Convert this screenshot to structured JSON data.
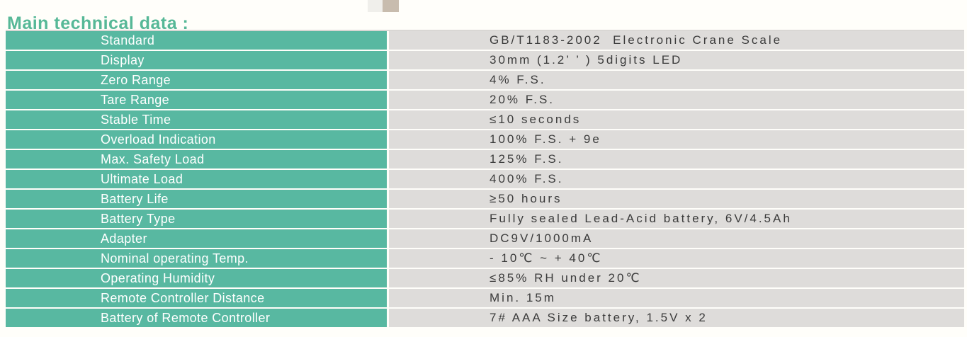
{
  "page": {
    "title": "Main technical data :"
  },
  "colors": {
    "title_color": "#56b897",
    "label_cell_bg": "#58b8a1",
    "value_cell_bg": "#dedcda",
    "label_text": "#ffffff",
    "value_text": "#3b3b3b",
    "decor_square_light": "#f0efeb",
    "decor_square_tan": "#c8bcae"
  },
  "table": {
    "rows": [
      {
        "label": "Standard",
        "value": "GB/T1183-2002  Electronic Crane Scale"
      },
      {
        "label": "Display",
        "value": "30mm (1.2’ ’ ) 5digits LED"
      },
      {
        "label": "Zero Range",
        "value": "4% F.S."
      },
      {
        "label": "Tare Range",
        "value": "20% F.S."
      },
      {
        "label": "Stable Time",
        "value": "≤10 seconds"
      },
      {
        "label": "Overload Indication",
        "value": "100% F.S. + 9e"
      },
      {
        "label": "Max. Safety Load",
        "value": "125% F.S."
      },
      {
        "label": "Ultimate Load",
        "value": "400% F.S."
      },
      {
        "label": "Battery Life",
        "value": "≥50 hours"
      },
      {
        "label": "Battery Type",
        "value": "Fully sealed Lead-Acid battery, 6V/4.5Ah"
      },
      {
        "label": "Adapter",
        "value": "DC9V/1000mA"
      },
      {
        "label": "Nominal operating Temp.",
        "value": "- 10℃ ~ + 40℃"
      },
      {
        "label": "Operating Humidity",
        "value": "≤85% RH under 20℃"
      },
      {
        "label": "Remote Controller Distance",
        "value": "Min. 15m"
      },
      {
        "label": "Battery of Remote Controller",
        "value": "7# AAA Size battery, 1.5V x 2"
      }
    ]
  }
}
